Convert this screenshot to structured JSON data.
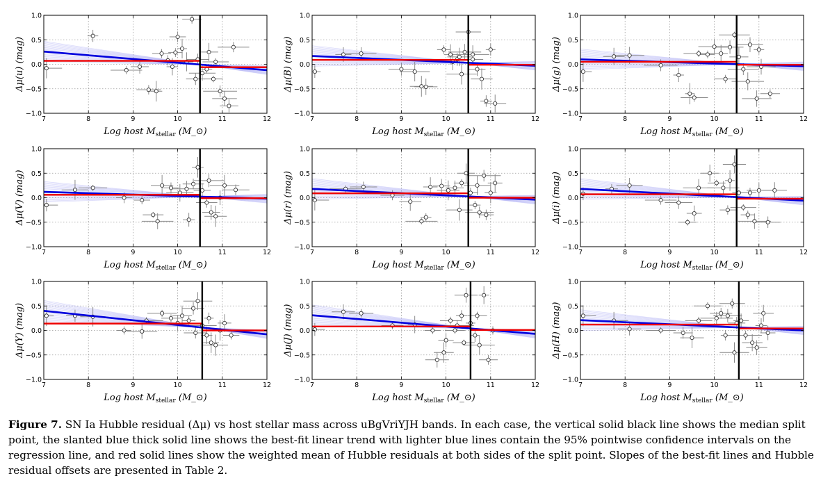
{
  "figure": {
    "caption_lead": "Figure 7.",
    "caption_text": "SN Ia Hubble residual (Δμ) vs host stellar mass across uBgVriYJH bands. In each case, the vertical solid black line shows the median split point, the slanted blue thick solid line shows the best-fit linear trend with lighter blue lines contain the 95% pointwise confidence intervals on the regression line, and red solid lines show the weighted mean of Hubble residuals at both sides of the split point. Slopes of the best-fit lines and Hubble residual offsets are presented in Table 2."
  },
  "colors": {
    "fit": "#0000dd",
    "ci": "#8c8cf0",
    "mean": "#ee0000",
    "split": "#000000",
    "points": "#777777"
  },
  "chart_data": [
    {
      "type": "scatter",
      "band": "u",
      "xlabel": "Log host M_stellar (M_⊙)",
      "ylabel": "Δμ(u) (mag)",
      "xlim": [
        7,
        12
      ],
      "ylim": [
        -1,
        1
      ],
      "xticks": [
        7,
        8,
        9,
        10,
        11,
        12
      ],
      "yticks": [
        -1.0,
        -0.5,
        0.0,
        0.5,
        1.0
      ],
      "grid": true,
      "split": 10.5,
      "fit_line": [
        [
          7,
          0.26
        ],
        [
          12,
          -0.12
        ]
      ],
      "mean_left": 0.07,
      "mean_right": -0.06,
      "points": [
        [
          7.06,
          -0.08
        ],
        [
          8.1,
          0.58
        ],
        [
          8.85,
          -0.12
        ],
        [
          9.15,
          -0.05
        ],
        [
          9.35,
          -0.52
        ],
        [
          9.52,
          -0.55
        ],
        [
          9.64,
          0.22
        ],
        [
          9.78,
          0.08
        ],
        [
          9.88,
          -0.05
        ],
        [
          10.0,
          0.56
        ],
        [
          10.1,
          0.32
        ],
        [
          10.2,
          0.05
        ],
        [
          10.32,
          0.92
        ],
        [
          10.45,
          0.1
        ],
        [
          10.55,
          -0.18
        ],
        [
          10.65,
          -0.1
        ],
        [
          10.8,
          -0.3
        ],
        [
          10.95,
          -0.55
        ],
        [
          11.05,
          -0.7
        ],
        [
          11.25,
          0.35
        ],
        [
          11.15,
          -0.85
        ],
        [
          10.7,
          0.25
        ],
        [
          10.4,
          -0.3
        ],
        [
          9.95,
          0.24
        ],
        [
          10.85,
          0.05
        ]
      ]
    },
    {
      "type": "scatter",
      "band": "B",
      "xlabel": "Log host M_stellar (M_⊙)",
      "ylabel": "Δμ(B) (mag)",
      "xlim": [
        7,
        12
      ],
      "ylim": [
        -1,
        1
      ],
      "xticks": [
        7,
        8,
        9,
        10,
        11,
        12
      ],
      "yticks": [
        -1.0,
        -0.5,
        0.0,
        0.5,
        1.0
      ],
      "grid": true,
      "split": 10.5,
      "fit_line": [
        [
          7,
          0.17
        ],
        [
          12,
          -0.03
        ]
      ],
      "mean_left": 0.09,
      "mean_right": -0.01,
      "points": [
        [
          7.06,
          -0.15
        ],
        [
          7.7,
          0.2
        ],
        [
          8.1,
          0.22
        ],
        [
          9.0,
          -0.1
        ],
        [
          9.3,
          -0.15
        ],
        [
          9.45,
          -0.45
        ],
        [
          9.55,
          -0.46
        ],
        [
          9.95,
          0.3
        ],
        [
          10.1,
          0.2
        ],
        [
          10.25,
          0.1
        ],
        [
          10.3,
          0.15
        ],
        [
          10.42,
          0.25
        ],
        [
          10.5,
          0.66
        ],
        [
          10.6,
          0.1
        ],
        [
          10.7,
          -0.1
        ],
        [
          10.8,
          -0.3
        ],
        [
          10.9,
          -0.75
        ],
        [
          11.1,
          -0.8
        ],
        [
          11.0,
          0.3
        ],
        [
          10.35,
          -0.2
        ],
        [
          10.6,
          0.2
        ],
        [
          10.15,
          0.05
        ]
      ]
    },
    {
      "type": "scatter",
      "band": "g",
      "xlabel": "Log host M_stellar (M_⊙)",
      "ylabel": "Δμ(g) (mag)",
      "xlim": [
        7,
        12
      ],
      "ylim": [
        -1,
        1
      ],
      "xticks": [
        7,
        8,
        9,
        10,
        11,
        12
      ],
      "yticks": [
        -1.0,
        -0.5,
        0.0,
        0.5,
        1.0
      ],
      "grid": true,
      "split": 10.5,
      "fit_line": [
        [
          7,
          0.1
        ],
        [
          12,
          -0.04
        ]
      ],
      "mean_left": 0.05,
      "mean_right": -0.01,
      "points": [
        [
          7.06,
          -0.15
        ],
        [
          7.75,
          0.16
        ],
        [
          8.1,
          0.18
        ],
        [
          8.8,
          -0.02
        ],
        [
          9.2,
          -0.22
        ],
        [
          9.45,
          -0.6
        ],
        [
          9.55,
          -0.68
        ],
        [
          9.65,
          0.22
        ],
        [
          9.85,
          0.2
        ],
        [
          10.0,
          0.36
        ],
        [
          10.15,
          0.22
        ],
        [
          10.35,
          0.35
        ],
        [
          10.45,
          0.6
        ],
        [
          10.55,
          0.15
        ],
        [
          10.65,
          -0.1
        ],
        [
          10.75,
          -0.35
        ],
        [
          10.95,
          -0.7
        ],
        [
          11.0,
          0.3
        ],
        [
          11.25,
          -0.6
        ],
        [
          11.05,
          -0.05
        ],
        [
          10.25,
          -0.3
        ],
        [
          10.8,
          0.4
        ]
      ]
    },
    {
      "type": "scatter",
      "band": "V",
      "xlabel": "Log host M_stellar (M_⊙)",
      "ylabel": "Δμ(V) (mag)",
      "xlim": [
        7,
        12
      ],
      "ylim": [
        -1,
        1
      ],
      "xticks": [
        7,
        8,
        9,
        10,
        11,
        12
      ],
      "yticks": [
        -1.0,
        -0.5,
        0.0,
        0.5,
        1.0
      ],
      "grid": true,
      "split": 10.5,
      "fit_line": [
        [
          7,
          0.12
        ],
        [
          12,
          -0.02
        ]
      ],
      "mean_left": 0.06,
      "mean_right": -0.01,
      "points": [
        [
          7.06,
          -0.15
        ],
        [
          7.7,
          0.16
        ],
        [
          8.1,
          0.2
        ],
        [
          8.8,
          0.0
        ],
        [
          9.2,
          -0.05
        ],
        [
          9.45,
          -0.35
        ],
        [
          9.55,
          -0.48
        ],
        [
          9.65,
          0.25
        ],
        [
          9.85,
          0.2
        ],
        [
          10.05,
          0.1
        ],
        [
          10.2,
          0.18
        ],
        [
          10.35,
          0.28
        ],
        [
          10.45,
          0.62
        ],
        [
          10.55,
          0.15
        ],
        [
          10.65,
          -0.1
        ],
        [
          10.75,
          -0.3
        ],
        [
          10.85,
          -0.38
        ],
        [
          10.95,
          0.0
        ],
        [
          11.05,
          0.25
        ],
        [
          11.3,
          0.16
        ],
        [
          10.25,
          -0.45
        ],
        [
          10.7,
          0.35
        ]
      ]
    },
    {
      "type": "scatter",
      "band": "r",
      "xlabel": "Log host M_stellar (M_⊙)",
      "ylabel": "Δμ(r) (mag)",
      "xlim": [
        7,
        12
      ],
      "ylim": [
        -1,
        1
      ],
      "xticks": [
        7,
        8,
        9,
        10,
        11,
        12
      ],
      "yticks": [
        -1.0,
        -0.5,
        0.0,
        0.5,
        1.0
      ],
      "grid": true,
      "split": 10.5,
      "fit_line": [
        [
          7,
          0.18
        ],
        [
          12,
          -0.04
        ]
      ],
      "mean_left": 0.09,
      "mean_right": 0.0,
      "points": [
        [
          7.06,
          -0.05
        ],
        [
          7.75,
          0.18
        ],
        [
          8.15,
          0.22
        ],
        [
          8.8,
          0.05
        ],
        [
          9.2,
          -0.08
        ],
        [
          9.45,
          -0.48
        ],
        [
          9.55,
          -0.4
        ],
        [
          9.65,
          0.22
        ],
        [
          9.9,
          0.24
        ],
        [
          10.05,
          0.15
        ],
        [
          10.2,
          0.2
        ],
        [
          10.35,
          0.3
        ],
        [
          10.45,
          0.5
        ],
        [
          10.55,
          0.1
        ],
        [
          10.65,
          -0.15
        ],
        [
          10.75,
          -0.3
        ],
        [
          10.9,
          -0.35
        ],
        [
          11.0,
          0.1
        ],
        [
          11.1,
          0.3
        ],
        [
          10.3,
          -0.25
        ],
        [
          10.7,
          0.25
        ],
        [
          10.85,
          0.45
        ]
      ]
    },
    {
      "type": "scatter",
      "band": "i",
      "xlabel": "Log host M_stellar (M_⊙)",
      "ylabel": "Δμ(i) (mag)",
      "xlim": [
        7,
        12
      ],
      "ylim": [
        -1,
        1
      ],
      "xticks": [
        7,
        8,
        9,
        10,
        11,
        12
      ],
      "yticks": [
        -1.0,
        -0.5,
        0.0,
        0.5,
        1.0
      ],
      "grid": true,
      "split": 10.5,
      "fit_line": [
        [
          7,
          0.18
        ],
        [
          12,
          -0.06
        ]
      ],
      "mean_left": 0.07,
      "mean_right": -0.02,
      "points": [
        [
          7.06,
          0.08
        ],
        [
          7.7,
          0.18
        ],
        [
          8.1,
          0.25
        ],
        [
          8.8,
          -0.05
        ],
        [
          9.2,
          -0.1
        ],
        [
          9.4,
          -0.5
        ],
        [
          9.55,
          -0.32
        ],
        [
          9.65,
          0.2
        ],
        [
          9.9,
          0.5
        ],
        [
          10.05,
          0.3
        ],
        [
          10.2,
          0.2
        ],
        [
          10.35,
          0.35
        ],
        [
          10.45,
          0.68
        ],
        [
          10.55,
          0.1
        ],
        [
          10.65,
          -0.2
        ],
        [
          10.75,
          -0.35
        ],
        [
          10.9,
          -0.48
        ],
        [
          11.2,
          -0.5
        ],
        [
          11.0,
          0.15
        ],
        [
          11.35,
          0.15
        ],
        [
          10.3,
          -0.25
        ],
        [
          10.8,
          0.1
        ]
      ]
    },
    {
      "type": "scatter",
      "band": "Y",
      "xlabel": "Log host M_stellar (M_⊙)",
      "ylabel": "Δμ(Y) (mag)",
      "xlim": [
        7,
        12
      ],
      "ylim": [
        -1,
        1
      ],
      "xticks": [
        7,
        8,
        9,
        10,
        11,
        12
      ],
      "yticks": [
        -1.0,
        -0.5,
        0.0,
        0.5,
        1.0
      ],
      "grid": true,
      "split": 10.55,
      "fit_line": [
        [
          7,
          0.4
        ],
        [
          12,
          -0.08
        ]
      ],
      "mean_left": 0.14,
      "mean_right": 0.0,
      "points": [
        [
          7.06,
          0.3
        ],
        [
          7.7,
          0.3
        ],
        [
          8.1,
          0.28
        ],
        [
          8.8,
          0.0
        ],
        [
          9.3,
          0.2
        ],
        [
          9.65,
          0.35
        ],
        [
          9.85,
          0.25
        ],
        [
          10.0,
          0.15
        ],
        [
          10.1,
          0.3
        ],
        [
          10.25,
          0.2
        ],
        [
          10.35,
          0.45
        ],
        [
          10.45,
          0.6
        ],
        [
          10.55,
          0.1
        ],
        [
          10.65,
          -0.1
        ],
        [
          10.75,
          -0.25
        ],
        [
          10.85,
          -0.3
        ],
        [
          10.95,
          0.0
        ],
        [
          11.05,
          0.15
        ],
        [
          10.7,
          0.25
        ],
        [
          10.4,
          -0.05
        ],
        [
          9.2,
          -0.02
        ],
        [
          11.2,
          -0.1
        ]
      ]
    },
    {
      "type": "scatter",
      "band": "J",
      "xlabel": "Log host M_stellar (M_⊙)",
      "ylabel": "Δμ(J) (mag)",
      "xlim": [
        7,
        12
      ],
      "ylim": [
        -1,
        1
      ],
      "xticks": [
        7,
        8,
        9,
        10,
        11,
        12
      ],
      "yticks": [
        -1.0,
        -0.5,
        0.0,
        0.5,
        1.0
      ],
      "grid": true,
      "split": 10.55,
      "fit_line": [
        [
          7,
          0.31
        ],
        [
          12,
          -0.07
        ]
      ],
      "mean_left": 0.08,
      "mean_right": 0.01,
      "points": [
        [
          7.06,
          0.02
        ],
        [
          7.7,
          0.38
        ],
        [
          8.1,
          0.35
        ],
        [
          8.8,
          0.1
        ],
        [
          9.3,
          0.12
        ],
        [
          9.7,
          0.0
        ],
        [
          9.8,
          -0.6
        ],
        [
          10.0,
          -0.2
        ],
        [
          10.1,
          0.2
        ],
        [
          10.25,
          0.1
        ],
        [
          10.35,
          0.3
        ],
        [
          10.45,
          0.72
        ],
        [
          10.55,
          0.15
        ],
        [
          10.65,
          -0.1
        ],
        [
          10.75,
          -0.3
        ],
        [
          10.85,
          0.72
        ],
        [
          10.95,
          -0.6
        ],
        [
          11.05,
          0.0
        ],
        [
          10.7,
          0.3
        ],
        [
          10.4,
          -0.25
        ],
        [
          9.95,
          -0.45
        ],
        [
          10.2,
          0.0
        ]
      ]
    },
    {
      "type": "scatter",
      "band": "H",
      "xlabel": "Log host M_stellar (M_⊙)",
      "ylabel": "Δμ(H) (mag)",
      "xlim": [
        7,
        12
      ],
      "ylim": [
        -1,
        1
      ],
      "xticks": [
        7,
        8,
        9,
        10,
        11,
        12
      ],
      "yticks": [
        -1.0,
        -0.5,
        0.0,
        0.5,
        1.0
      ],
      "grid": true,
      "split": 10.55,
      "fit_line": [
        [
          7,
          0.21
        ],
        [
          12,
          0.0
        ]
      ],
      "mean_left": 0.12,
      "mean_right": 0.04,
      "points": [
        [
          7.06,
          0.3
        ],
        [
          7.75,
          0.2
        ],
        [
          8.1,
          0.03
        ],
        [
          8.8,
          0.0
        ],
        [
          9.3,
          -0.05
        ],
        [
          9.65,
          0.2
        ],
        [
          9.85,
          0.5
        ],
        [
          10.05,
          0.25
        ],
        [
          10.15,
          0.35
        ],
        [
          10.3,
          0.3
        ],
        [
          10.4,
          0.55
        ],
        [
          10.5,
          0.15
        ],
        [
          10.6,
          0.2
        ],
        [
          10.7,
          -0.1
        ],
        [
          10.85,
          -0.25
        ],
        [
          10.95,
          -0.35
        ],
        [
          11.05,
          0.1
        ],
        [
          11.2,
          -0.05
        ],
        [
          10.45,
          -0.45
        ],
        [
          11.1,
          0.35
        ],
        [
          10.25,
          -0.1
        ],
        [
          9.5,
          -0.15
        ]
      ]
    }
  ]
}
